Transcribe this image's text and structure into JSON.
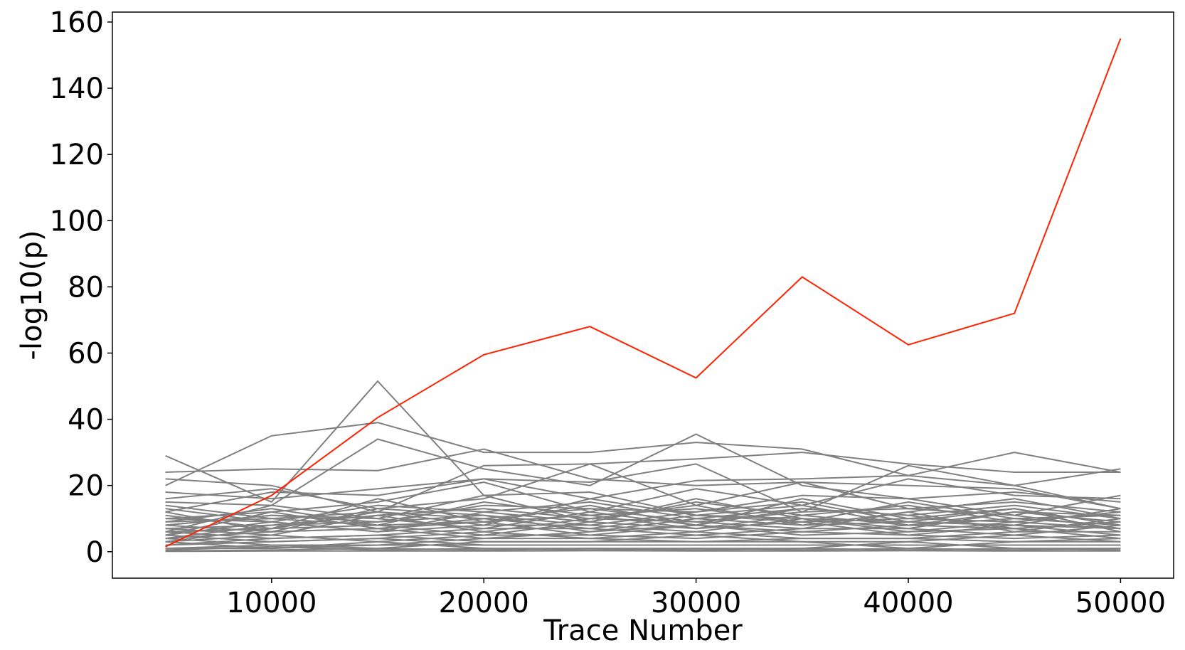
{
  "chart_data": {
    "type": "line",
    "title": "",
    "xlabel": "Trace Number",
    "ylabel": "-log10(p)",
    "x": [
      5000,
      10000,
      15000,
      20000,
      25000,
      30000,
      35000,
      40000,
      45000,
      50000
    ],
    "xlim": [
      2500,
      52500
    ],
    "ylim": [
      -8,
      163
    ],
    "xticks": [
      10000,
      20000,
      30000,
      40000,
      50000
    ],
    "yticks": [
      0,
      20,
      40,
      60,
      80,
      100,
      120,
      140,
      160
    ],
    "grid": false,
    "legend": "none",
    "highlight_color": "#ff2200",
    "background_color": "#808080",
    "highlight_series": {
      "values": [
        1.5,
        17,
        40.5,
        59.5,
        68,
        52.5,
        83,
        62.5,
        72,
        155
      ]
    },
    "background_series": [
      {
        "values": [
          29,
          15,
          51.5,
          17,
          18,
          11,
          10,
          9,
          8,
          7
        ]
      },
      {
        "values": [
          20,
          35,
          39,
          30,
          30,
          33,
          31,
          23,
          30,
          24
        ]
      },
      {
        "values": [
          24,
          25,
          24.5,
          31,
          22,
          20,
          21,
          20,
          19,
          13
        ]
      },
      {
        "values": [
          15,
          14,
          34,
          25,
          20,
          35.5,
          20,
          16,
          18,
          15
        ]
      },
      {
        "values": [
          22,
          20,
          12,
          26,
          26.5,
          28,
          30,
          26.5,
          24,
          24
        ]
      },
      {
        "values": [
          12,
          18,
          17,
          22,
          21,
          26.5,
          12,
          26,
          20,
          13
        ]
      },
      {
        "values": [
          18,
          16,
          19,
          22,
          16,
          21.5,
          22,
          23,
          20,
          25
        ]
      },
      {
        "values": [
          10,
          12,
          15,
          21,
          12,
          19,
          14,
          22,
          17,
          16
        ]
      },
      {
        "values": [
          16,
          19,
          13,
          16,
          26.5,
          14,
          21,
          13,
          15,
          12
        ]
      },
      {
        "values": [
          8,
          11,
          9,
          14,
          13,
          12,
          17,
          16,
          11,
          17
        ]
      },
      {
        "values": [
          13,
          9,
          14,
          12,
          15,
          10,
          13,
          11,
          14,
          10
        ]
      },
      {
        "values": [
          6,
          14,
          10,
          17,
          9,
          15,
          11,
          14,
          9,
          12
        ]
      },
      {
        "values": [
          11,
          7,
          16,
          9,
          14,
          8,
          16,
          10,
          13,
          8
        ]
      },
      {
        "values": [
          9,
          13,
          8,
          15,
          11,
          13,
          9,
          15,
          10,
          11
        ]
      },
      {
        "values": [
          14,
          10,
          12,
          8,
          16,
          11,
          14,
          8,
          12,
          9
        ]
      },
      {
        "values": [
          7,
          8,
          11,
          13,
          10,
          14,
          8,
          12,
          16,
          10
        ]
      },
      {
        "values": [
          12,
          6,
          13,
          11,
          8,
          12,
          15,
          9,
          8,
          13
        ]
      },
      {
        "values": [
          5,
          12,
          7,
          10,
          13,
          9,
          12,
          13,
          11,
          7
        ]
      },
      {
        "values": [
          10,
          9,
          6,
          12,
          9,
          16,
          10,
          7,
          12,
          11
        ]
      },
      {
        "values": [
          8,
          11,
          10,
          7,
          12,
          8,
          13,
          11,
          7,
          9
        ]
      },
      {
        "values": [
          6,
          7,
          12,
          10,
          7,
          11,
          9,
          10,
          9,
          12
        ]
      },
      {
        "values": [
          9,
          10,
          8,
          9,
          11,
          7,
          11,
          8,
          10,
          8
        ]
      },
      {
        "values": [
          4,
          8,
          9,
          11,
          6,
          10,
          8,
          9,
          13,
          6
        ]
      },
      {
        "values": [
          7,
          5,
          11,
          6,
          10,
          9,
          7,
          12,
          6,
          10
        ]
      },
      {
        "values": [
          5,
          9,
          6,
          8,
          8,
          6,
          10,
          6,
          9,
          7
        ]
      },
      {
        "values": [
          8,
          6,
          7,
          9,
          5,
          8,
          6,
          8,
          7,
          9
        ]
      },
      {
        "values": [
          3,
          7,
          8,
          5,
          9,
          7,
          9,
          5,
          8,
          5
        ]
      },
      {
        "values": [
          6,
          4,
          5,
          7,
          7,
          5,
          7,
          7,
          5,
          8
        ]
      },
      {
        "values": [
          4,
          6,
          7,
          4,
          6,
          8,
          5,
          6,
          7,
          4
        ]
      },
      {
        "values": [
          5,
          3,
          4,
          6,
          4,
          6,
          4,
          4,
          6,
          6
        ]
      },
      {
        "values": [
          3,
          5,
          3,
          5,
          5,
          4,
          6,
          5,
          4,
          5
        ]
      },
      {
        "values": [
          2,
          4,
          5,
          3,
          3,
          5,
          3,
          3,
          5,
          3
        ]
      },
      {
        "values": [
          4,
          2,
          2,
          4,
          4,
          3,
          4,
          4,
          3,
          4
        ]
      },
      {
        "values": [
          2,
          3,
          4,
          2,
          2,
          2,
          2,
          2,
          2,
          2
        ]
      },
      {
        "values": [
          1,
          2,
          1,
          3,
          3,
          3,
          3,
          1,
          3,
          3
        ]
      },
      {
        "values": [
          3,
          1,
          3,
          1,
          1,
          1,
          1,
          3,
          1,
          1
        ]
      },
      {
        "values": [
          1,
          1,
          2,
          2,
          2,
          2,
          2,
          2,
          2,
          2
        ]
      },
      {
        "values": [
          0.5,
          1.5,
          0.5,
          1,
          0.5,
          1,
          0.5,
          1,
          0.5,
          1
        ]
      },
      {
        "values": [
          0.2,
          0.5,
          1,
          0.5,
          1,
          0.5,
          1,
          0.5,
          1,
          0.5
        ]
      },
      {
        "values": [
          0.1,
          0.2,
          0.2,
          0.2,
          0.3,
          0.2,
          0.2,
          0.3,
          0.2,
          0.2
        ]
      }
    ]
  }
}
